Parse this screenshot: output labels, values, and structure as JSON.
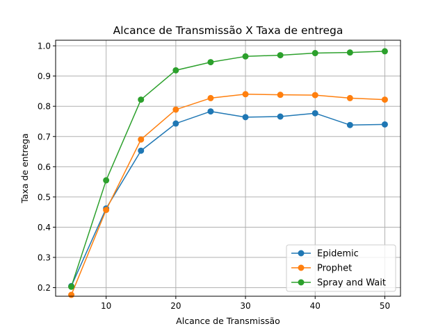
{
  "chart_data": {
    "type": "line",
    "title": "Alcance de Transmissão X Taxa de entrega",
    "xlabel": "Alcance de Transmissão",
    "ylabel": "Taxa de entrega",
    "xlim": [
      2.75,
      52.25
    ],
    "ylim": [
      0.1715,
      1.0185
    ],
    "xticks": [
      10,
      20,
      30,
      40,
      50
    ],
    "yticks": [
      0.2,
      0.3,
      0.4,
      0.5,
      0.6,
      0.7,
      0.8,
      0.9,
      1.0
    ],
    "grid": true,
    "legend_position": "lower-right",
    "x": [
      5,
      10,
      15,
      20,
      25,
      30,
      35,
      40,
      45,
      50
    ],
    "series": [
      {
        "name": "Epidemic",
        "color": "#1f77b4",
        "values": [
          0.205,
          0.462,
          0.653,
          0.743,
          0.783,
          0.764,
          0.766,
          0.777,
          0.738,
          0.74
        ]
      },
      {
        "name": "Prophet",
        "color": "#ff7f0e",
        "values": [
          0.176,
          0.457,
          0.69,
          0.789,
          0.827,
          0.84,
          0.838,
          0.837,
          0.827,
          0.822
        ]
      },
      {
        "name": "Spray and Wait",
        "color": "#2ca02c",
        "values": [
          0.203,
          0.555,
          0.822,
          0.919,
          0.946,
          0.965,
          0.969,
          0.976,
          0.978,
          0.982
        ]
      }
    ]
  }
}
